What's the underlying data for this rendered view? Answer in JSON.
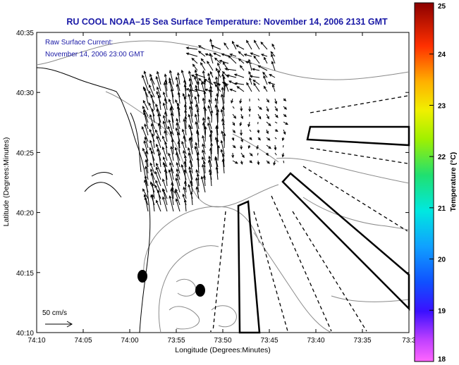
{
  "title": "RU COOL  NOAA–15  Sea Surface Temperature:  November 14, 2006 2131 GMT",
  "annotation": {
    "line1": "Raw Surface Current:",
    "line2": "November 14, 2006 23:00 GMT"
  },
  "scale_label": "50 cm/s",
  "xlabel": "Longitude (Degrees:Minutes)",
  "ylabel": "Latitude (Degrees:Minutes)",
  "x_ticks": [
    "74:10",
    "74:05",
    "74:00",
    "73:55",
    "73:50",
    "73:45",
    "73:40",
    "73:35",
    "73:3"
  ],
  "y_ticks": [
    "40:35",
    "40:30",
    "40:25",
    "40:20",
    "40:15",
    "40:10"
  ],
  "colorbar": {
    "label": "Temperature (°C)",
    "min": 18,
    "max": 25,
    "ticks": [
      "25",
      "24",
      "23",
      "22",
      "21",
      "20",
      "19",
      "18"
    ]
  },
  "colors": {
    "title": "#1a1aa6",
    "annotation": "#1a1aa6",
    "axis": "#000000",
    "contour": "#8a8a8a",
    "vector": "#000000"
  }
}
